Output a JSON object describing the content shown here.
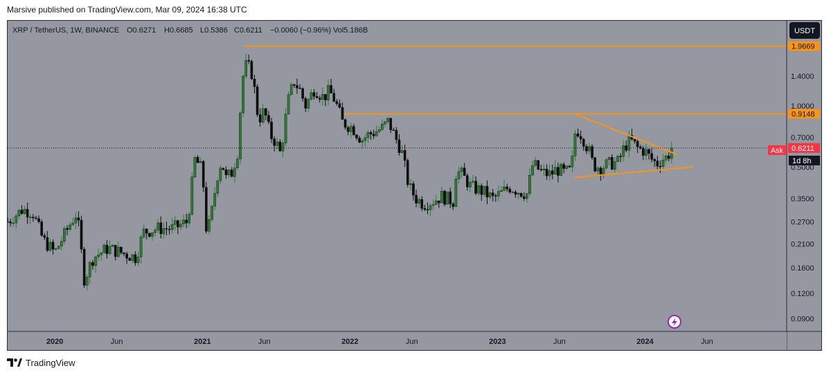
{
  "publisher": "Marsive published on TradingView.com, Mar 09, 2024 16:38 UTC",
  "header": {
    "symbol": "XRP / TetherUS, 1W, BINANCE",
    "open": "O0.6271",
    "high": "H0.6685",
    "low": "L0.5386",
    "close": "C0.6211",
    "change": "−0.0060 (−0.96%)",
    "volume": "Vol5.186B"
  },
  "currency_button": "USDT",
  "ask_label": "Ask",
  "countdown": "1d 8h",
  "footer_brand": "TradingView",
  "colors": {
    "background": "#9598a1",
    "up_candle": "#2e7d32",
    "down_candle": "#0d0d0d",
    "level_line": "#f7931a",
    "ask_badge": "#f23645"
  },
  "chart_data": {
    "type": "candlestick",
    "scale": "log",
    "symbol": "XRP / TetherUS",
    "interval": "1W",
    "exchange": "BINANCE",
    "ylim": [
      0.078,
      2.62
    ],
    "y_ticks": [
      "1.4000",
      "1.0000",
      "0.7000",
      "0.5000",
      "0.3500",
      "0.2700",
      "0.2100",
      "0.1600",
      "0.1200",
      "0.0900"
    ],
    "x_ticks": [
      {
        "label": "2020",
        "t": 2020.0,
        "bold": true
      },
      {
        "label": "Jun",
        "t": 2020.42,
        "bold": false
      },
      {
        "label": "2021",
        "t": 2021.0,
        "bold": true
      },
      {
        "label": "Jun",
        "t": 2021.42,
        "bold": false
      },
      {
        "label": "2022",
        "t": 2022.0,
        "bold": true
      },
      {
        "label": "Jun",
        "t": 2022.42,
        "bold": false
      },
      {
        "label": "2023",
        "t": 2023.0,
        "bold": true
      },
      {
        "label": "Jun",
        "t": 2023.42,
        "bold": false
      },
      {
        "label": "2024",
        "t": 2024.0,
        "bold": true
      },
      {
        "label": "Jun",
        "t": 2024.42,
        "bold": false
      }
    ],
    "xlim": [
      2019.68,
      2024.96
    ],
    "price_labels": [
      {
        "label": "1.9669",
        "value": 1.9669,
        "kind": "level"
      },
      {
        "label": "0.9148",
        "value": 0.9148,
        "kind": "level"
      },
      {
        "label": "0.6211",
        "value": 0.6211,
        "kind": "ask"
      }
    ],
    "horizontal_levels": [
      {
        "value": 1.9669,
        "from": 2021.28,
        "color": "#f7931a"
      },
      {
        "value": 0.9148,
        "from": 2021.96,
        "color": "#f7931a"
      }
    ],
    "trendlines": [
      {
        "from": [
          2023.52,
          0.9148
        ],
        "to": [
          2024.22,
          0.576
        ],
        "color": "#f7931a"
      },
      {
        "from": [
          2023.52,
          0.445
        ],
        "to": [
          2024.33,
          0.502
        ],
        "color": "#f7931a"
      }
    ],
    "current_price": 0.6211,
    "anchors": [
      [
        2019.68,
        0.27
      ],
      [
        2019.78,
        0.31
      ],
      [
        2019.85,
        0.3
      ],
      [
        2019.92,
        0.22
      ],
      [
        2020.0,
        0.19
      ],
      [
        2020.1,
        0.26
      ],
      [
        2020.15,
        0.3
      ],
      [
        2020.2,
        0.14
      ],
      [
        2020.26,
        0.18
      ],
      [
        2020.36,
        0.2
      ],
      [
        2020.45,
        0.19
      ],
      [
        2020.55,
        0.18
      ],
      [
        2020.6,
        0.24
      ],
      [
        2020.7,
        0.25
      ],
      [
        2020.8,
        0.25
      ],
      [
        2020.9,
        0.27
      ],
      [
        2020.95,
        0.55
      ],
      [
        2021.0,
        0.48
      ],
      [
        2021.03,
        0.23
      ],
      [
        2021.06,
        0.29
      ],
      [
        2021.1,
        0.45
      ],
      [
        2021.13,
        0.54
      ],
      [
        2021.16,
        0.44
      ],
      [
        2021.2,
        0.47
      ],
      [
        2021.24,
        0.6
      ],
      [
        2021.27,
        1.35
      ],
      [
        2021.3,
        1.62
      ],
      [
        2021.34,
        1.42
      ],
      [
        2021.38,
        0.85
      ],
      [
        2021.42,
        0.95
      ],
      [
        2021.46,
        0.72
      ],
      [
        2021.5,
        0.66
      ],
      [
        2021.53,
        0.58
      ],
      [
        2021.58,
        1.05
      ],
      [
        2021.62,
        1.32
      ],
      [
        2021.66,
        1.2
      ],
      [
        2021.7,
        1.0
      ],
      [
        2021.76,
        1.22
      ],
      [
        2021.82,
        1.1
      ],
      [
        2021.86,
        1.18
      ],
      [
        2021.9,
        1.06
      ],
      [
        2021.95,
        0.83
      ],
      [
        2022.02,
        0.78
      ],
      [
        2022.08,
        0.68
      ],
      [
        2022.12,
        0.72
      ],
      [
        2022.16,
        0.74
      ],
      [
        2022.22,
        0.78
      ],
      [
        2022.26,
        0.84
      ],
      [
        2022.3,
        0.72
      ],
      [
        2022.35,
        0.6
      ],
      [
        2022.4,
        0.4
      ],
      [
        2022.45,
        0.35
      ],
      [
        2022.5,
        0.33
      ],
      [
        2022.56,
        0.34
      ],
      [
        2022.62,
        0.36
      ],
      [
        2022.7,
        0.34
      ],
      [
        2022.72,
        0.48
      ],
      [
        2022.76,
        0.46
      ],
      [
        2022.82,
        0.4
      ],
      [
        2022.9,
        0.38
      ],
      [
        2022.97,
        0.35
      ],
      [
        2023.02,
        0.37
      ],
      [
        2023.08,
        0.4
      ],
      [
        2023.15,
        0.38
      ],
      [
        2023.2,
        0.37
      ],
      [
        2023.24,
        0.52
      ],
      [
        2023.3,
        0.47
      ],
      [
        2023.36,
        0.46
      ],
      [
        2023.4,
        0.49
      ],
      [
        2023.45,
        0.47
      ],
      [
        2023.5,
        0.48
      ],
      [
        2023.53,
        0.78
      ],
      [
        2023.57,
        0.72
      ],
      [
        2023.62,
        0.6
      ],
      [
        2023.65,
        0.51
      ],
      [
        2023.7,
        0.5
      ],
      [
        2023.76,
        0.52
      ],
      [
        2023.82,
        0.53
      ],
      [
        2023.86,
        0.63
      ],
      [
        2023.9,
        0.68
      ],
      [
        2023.95,
        0.62
      ],
      [
        2024.0,
        0.6
      ],
      [
        2024.04,
        0.55
      ],
      [
        2024.08,
        0.52
      ],
      [
        2024.12,
        0.55
      ],
      [
        2024.15,
        0.56
      ],
      [
        2024.18,
        0.6211
      ]
    ]
  }
}
